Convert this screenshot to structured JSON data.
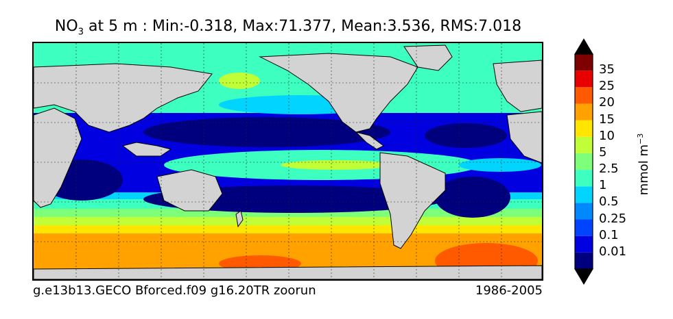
{
  "title": {
    "prefix": "NO",
    "subscript": "3",
    "rest": " at 5 m : Min:-0.318, Max:71.377, Mean:3.536, RMS:7.018"
  },
  "footer": {
    "run": "g.e13b13.GECO Bforced.f09 g16.20TR zoorun",
    "period": "1986-2005"
  },
  "colorbar": {
    "unit_base": "mmol m",
    "unit_exp": "−3",
    "labels": [
      "0.01",
      "0.1",
      "0.25",
      "0.5",
      "1",
      "2.5",
      "5",
      "10",
      "15",
      "20",
      "25",
      "35"
    ],
    "colors": [
      "#00007f",
      "#0000e0",
      "#0044ff",
      "#0088ff",
      "#00d4ff",
      "#3dffc0",
      "#7dff7a",
      "#c0ff37",
      "#ffe500",
      "#ffa200",
      "#ff5a00",
      "#e80000",
      "#7f0000"
    ],
    "under_color": "#000000",
    "over_color": "#000000"
  },
  "map": {
    "land_color": "#d3d3d3",
    "projection": "cylindrical",
    "gridlines": "dashed"
  }
}
